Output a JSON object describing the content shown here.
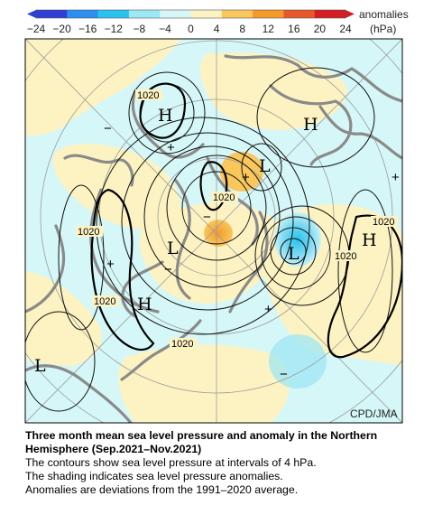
{
  "colorbar": {
    "ticks": [
      "−24",
      "−20",
      "−16",
      "−12",
      "−8",
      "−4",
      "0",
      "4",
      "8",
      "12",
      "16",
      "20",
      "24"
    ],
    "label_line1": "anomalies",
    "label_line2": "(hPa)",
    "colors": [
      "#2f3fd6",
      "#2d8ef0",
      "#27c3ee",
      "#9ee7f4",
      "#d6f7f7",
      "#fdf3c2",
      "#f9c75c",
      "#f39a2b",
      "#e9582a",
      "#d41e25"
    ]
  },
  "map": {
    "contour_labels": [
      "1020",
      "1020",
      "1020",
      "1020",
      "1020",
      "1020",
      "1020"
    ],
    "centers": [
      "H",
      "H",
      "H",
      "H",
      "L",
      "L",
      "L",
      "L"
    ],
    "plus_marks": [
      "+",
      "+",
      "+",
      "+",
      "+"
    ],
    "minus_marks": [
      "−",
      "−",
      "−",
      "−"
    ],
    "credit": "CPD/JMA"
  },
  "caption": {
    "title": "Three month mean sea level pressure and anomaly in the Northern Hemisphere (Sep.2021–Nov.2021)",
    "line1": "The contours show sea level pressure at intervals of 4 hPa.",
    "line2": "The shading indicates sea level pressure anomalies.",
    "line3": "Anomalies are deviations from the 1991–2020 average."
  }
}
